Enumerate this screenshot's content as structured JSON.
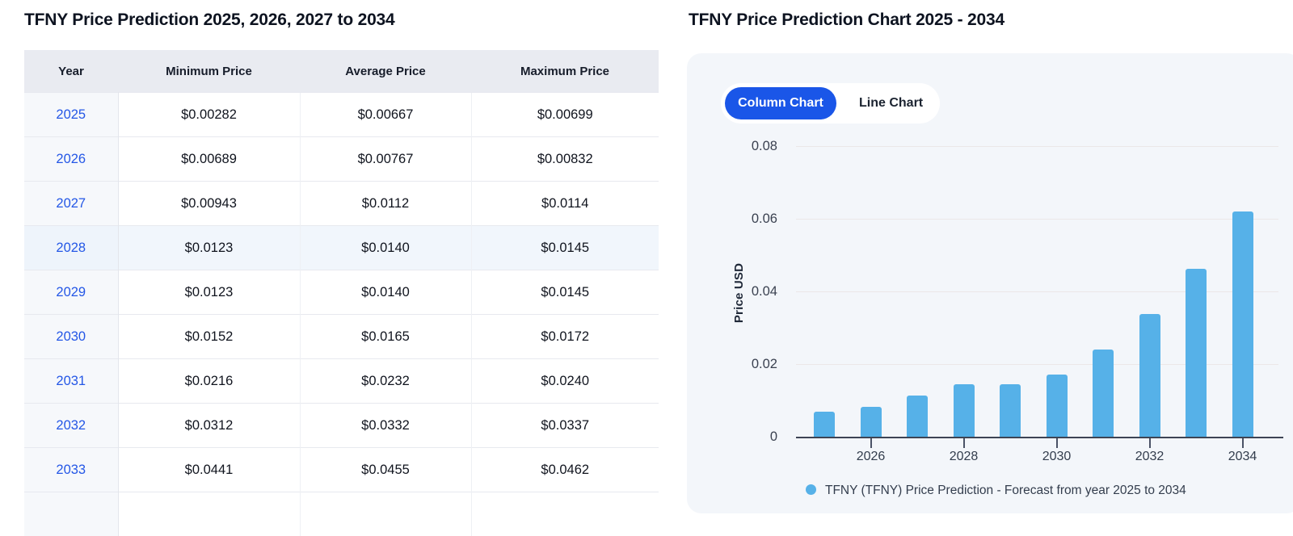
{
  "left": {
    "title": "TFNY Price Prediction 2025, 2026, 2027 to 2034",
    "table": {
      "headers": [
        "Year",
        "Minimum Price",
        "Average Price",
        "Maximum Price"
      ],
      "rows": [
        {
          "year": "2025",
          "min": "$0.00282",
          "avg": "$0.00667",
          "max": "$0.00699"
        },
        {
          "year": "2026",
          "min": "$0.00689",
          "avg": "$0.00767",
          "max": "$0.00832"
        },
        {
          "year": "2027",
          "min": "$0.00943",
          "avg": "$0.0112",
          "max": "$0.0114"
        },
        {
          "year": "2028",
          "min": "$0.0123",
          "avg": "$0.0140",
          "max": "$0.0145"
        },
        {
          "year": "2029",
          "min": "$0.0123",
          "avg": "$0.0140",
          "max": "$0.0145"
        },
        {
          "year": "2030",
          "min": "$0.0152",
          "avg": "$0.0165",
          "max": "$0.0172"
        },
        {
          "year": "2031",
          "min": "$0.0216",
          "avg": "$0.0232",
          "max": "$0.0240"
        },
        {
          "year": "2032",
          "min": "$0.0312",
          "avg": "$0.0332",
          "max": "$0.0337"
        },
        {
          "year": "2033",
          "min": "$0.0441",
          "avg": "$0.0455",
          "max": "$0.0462"
        }
      ],
      "highlighted_year": "2028",
      "partial_row_visible": true
    }
  },
  "right": {
    "title": "TFNY Price Prediction Chart 2025 - 2034",
    "toggle": {
      "column_label": "Column Chart",
      "line_label": "Line Chart",
      "active": "Column Chart"
    }
  },
  "chart_data": {
    "type": "bar",
    "title": "TFNY Price Prediction Chart 2025 - 2034",
    "ylabel": "Price USD",
    "xlabel": "",
    "categories": [
      2025,
      2026,
      2027,
      2028,
      2029,
      2030,
      2031,
      2032,
      2033,
      2034
    ],
    "values": [
      0.00699,
      0.00832,
      0.0114,
      0.0145,
      0.0145,
      0.0172,
      0.024,
      0.0337,
      0.0462,
      0.062
    ],
    "series_name": "TFNY (TFNY) Price Prediction - Forecast from year 2025 to 2034",
    "y_ticks": [
      0,
      0.02,
      0.04,
      0.06,
      0.08
    ],
    "y_tick_labels": [
      "0",
      "0.02",
      "0.04",
      "0.06",
      "0.08"
    ],
    "x_tick_labels": [
      "2026",
      "2028",
      "2030",
      "2032",
      "2034"
    ],
    "ylim": [
      0,
      0.09
    ],
    "grid": true,
    "legend_position": "bottom",
    "bar_color": "#56b1e8"
  },
  "colors": {
    "accent_blue": "#1a56e8",
    "link_blue": "#2457e6",
    "bar_blue": "#56b1e8",
    "card_bg": "#f3f6fa",
    "header_bg": "#e9ebf1"
  }
}
